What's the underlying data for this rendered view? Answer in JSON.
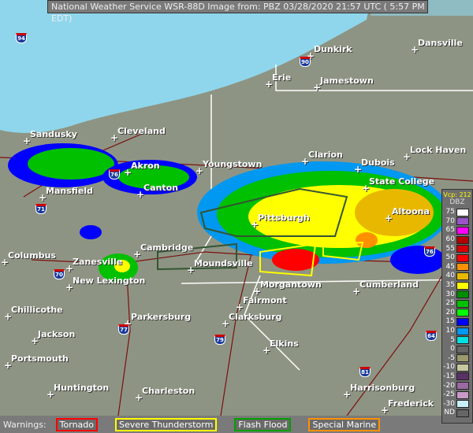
{
  "header": {
    "title": "National Weather Service WSR-88D Image from: PBZ 03/28/2020 21:57 UTC ( 5:57 PM EDT)"
  },
  "legend": {
    "vcp": "Vcp: 212",
    "unit": "DBZ",
    "entries": [
      {
        "label": "75",
        "color": "#ffffff"
      },
      {
        "label": "70",
        "color": "#9955c8"
      },
      {
        "label": "65",
        "color": "#ff00ff"
      },
      {
        "label": "60",
        "color": "#b40000"
      },
      {
        "label": "55",
        "color": "#d40000"
      },
      {
        "label": "50",
        "color": "#ff0000"
      },
      {
        "label": "45",
        "color": "#ff9000"
      },
      {
        "label": "40",
        "color": "#e8b800"
      },
      {
        "label": "35",
        "color": "#ffff00"
      },
      {
        "label": "30",
        "color": "#008c00"
      },
      {
        "label": "25",
        "color": "#00c000"
      },
      {
        "label": "20",
        "color": "#00ff00"
      },
      {
        "label": "15",
        "color": "#0000ff"
      },
      {
        "label": "10",
        "color": "#0098f0"
      },
      {
        "label": "5",
        "color": "#00e0e0"
      },
      {
        "label": "0",
        "color": "#666666"
      },
      {
        "label": "-5",
        "color": "#9a9a6e"
      },
      {
        "label": "-10",
        "color": "#c8c8a0"
      },
      {
        "label": "-15",
        "color": "#5a3266"
      },
      {
        "label": "-20",
        "color": "#9a6aa0"
      },
      {
        "label": "-25",
        "color": "#c89ac8"
      },
      {
        "label": "-30",
        "color": "#c8f0f8"
      },
      {
        "label": "ND",
        "color": "#666666"
      }
    ]
  },
  "warnings": {
    "label": "Warnings:",
    "items": [
      {
        "label": "Tornado",
        "color": "#ff0000"
      },
      {
        "label": "Severe Thunderstorm",
        "color": "#ffff00"
      },
      {
        "label": "Flash Flood",
        "color": "#00a000"
      },
      {
        "label": "Special Marine",
        "color": "#ff9000"
      }
    ]
  },
  "cities": [
    "Dunkirk",
    "Dansville",
    "Erie",
    "Jamestown",
    "Sandusky",
    "Cleveland",
    "Akron",
    "Youngstown",
    "Clarion",
    "Dubois",
    "Lock Haven",
    "Mansfield",
    "Canton",
    "State College",
    "Pittsburgh",
    "Altoona",
    "Columbus",
    "Zanesville",
    "Cambridge",
    "Moundsville",
    "New Lexington",
    "Morgantown",
    "Cumberland",
    "Fairmont",
    "Chillicothe",
    "Parkersburg",
    "Clarksburg",
    "Jackson",
    "Portsmouth",
    "Elkins",
    "Huntington",
    "Charleston",
    "Harrisonburg",
    "Frederick"
  ],
  "interstates": [
    "94",
    "90",
    "76",
    "71",
    "70",
    "77",
    "79",
    "81",
    "64",
    "76"
  ]
}
